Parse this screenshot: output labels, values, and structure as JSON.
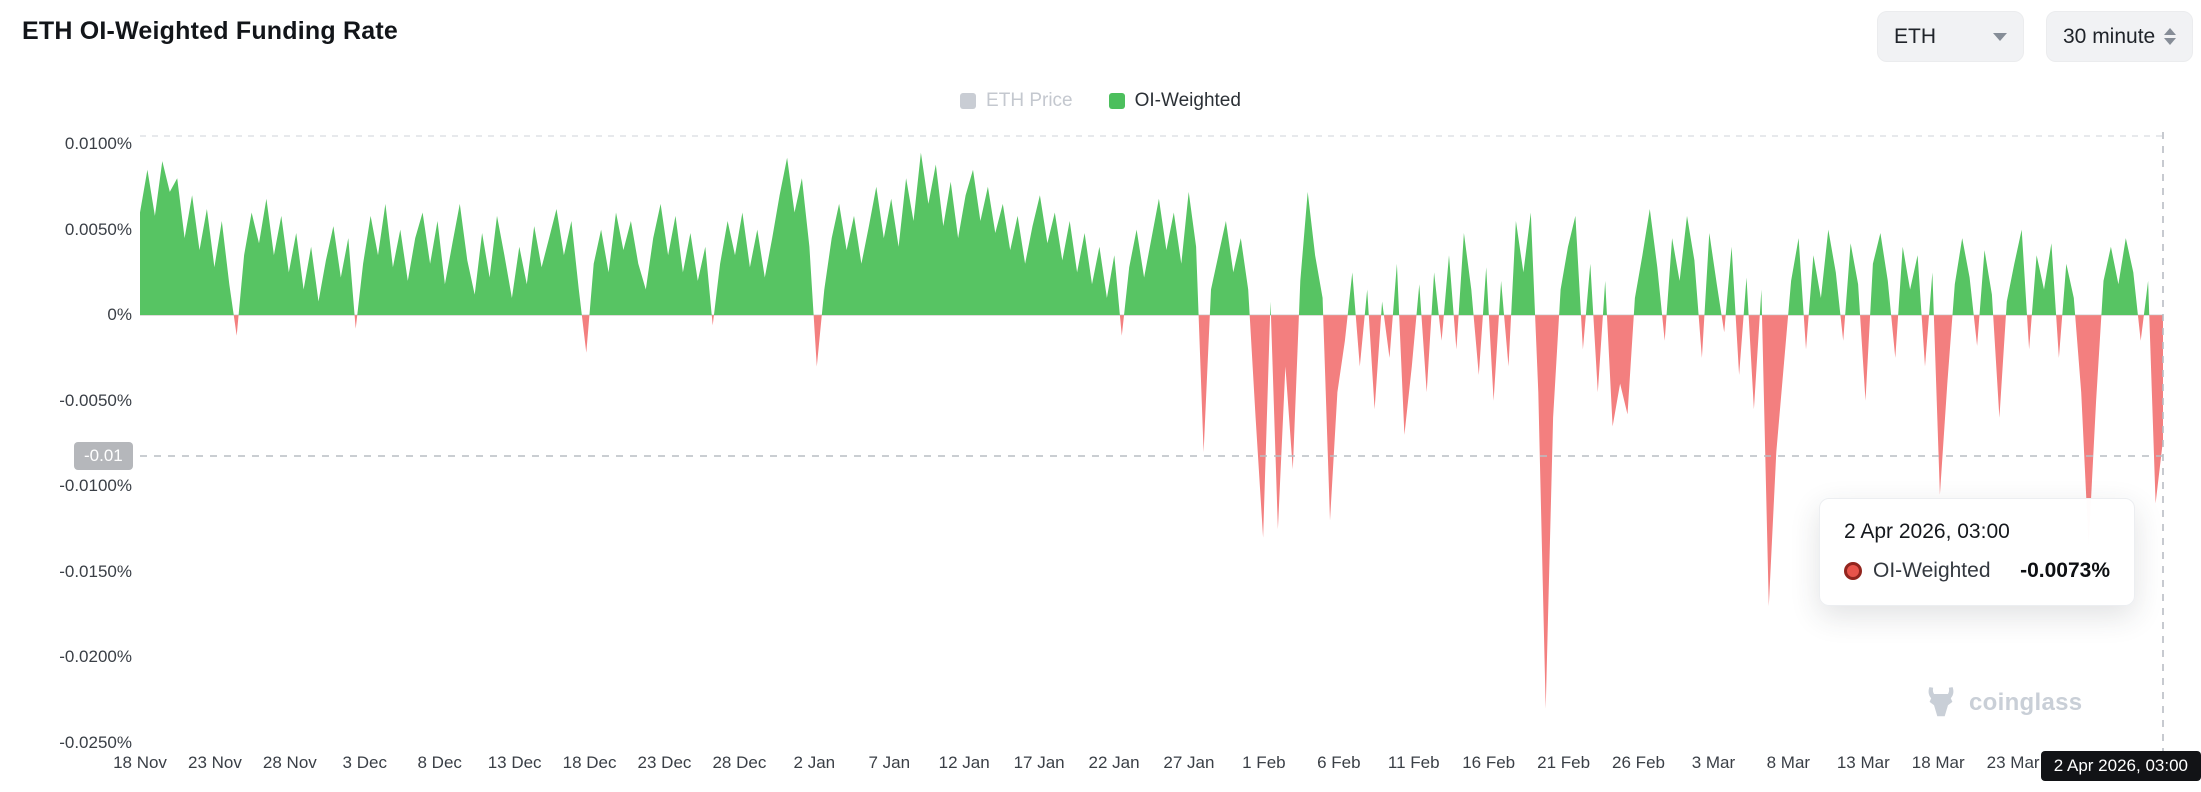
{
  "page": {
    "title": "ETH OI-Weighted Funding Rate"
  },
  "controls": {
    "symbol": {
      "value": "ETH"
    },
    "interval": {
      "value": "30 minute"
    }
  },
  "legend": {
    "items": [
      {
        "label": "ETH Price",
        "color": "#c9cdd4",
        "text_color": "#c4c8cf",
        "active": false
      },
      {
        "label": "OI-Weighted",
        "color": "#4cbf5d",
        "text_color": "#2b3036",
        "active": true
      }
    ]
  },
  "chart_data": {
    "type": "area",
    "title": "ETH OI-Weighted Funding Rate",
    "unit": "%",
    "grid": "off",
    "legend_position": "top-center",
    "y_axis": {
      "max": 0.01,
      "min": -0.025,
      "tick_labels": [
        "0.0100%",
        "0.0050%",
        "0%",
        "-0.0050%",
        "-0.0100%",
        "-0.0150%",
        "-0.0200%",
        "-0.0250%"
      ]
    },
    "x_axis": {
      "tick_labels": [
        "18 Nov",
        "23 Nov",
        "28 Nov",
        "3 Dec",
        "8 Dec",
        "13 Dec",
        "18 Dec",
        "23 Dec",
        "28 Dec",
        "2 Jan",
        "7 Jan",
        "12 Jan",
        "17 Jan",
        "22 Jan",
        "27 Jan",
        "1 Feb",
        "6 Feb",
        "11 Feb",
        "16 Feb",
        "21 Feb",
        "26 Feb",
        "3 Mar",
        "8 Mar",
        "13 Mar",
        "18 Mar",
        "23 Mar"
      ],
      "tick_interval_days": 5,
      "total_days": 135,
      "end_datetime": "2 Apr 2026, 03:00"
    },
    "hidden_series": [
      "ETH Price"
    ],
    "series": [
      {
        "name": "OI-Weighted",
        "positive_color": "#57c463",
        "negative_color": "#f37f7f",
        "last_value_pct": -0.0073,
        "values": [
          0.006,
          0.0085,
          0.0058,
          0.009,
          0.0072,
          0.008,
          0.0045,
          0.007,
          0.0038,
          0.0062,
          0.0028,
          0.0055,
          0.0018,
          -0.0012,
          0.0035,
          0.006,
          0.0042,
          0.0068,
          0.0035,
          0.0058,
          0.0025,
          0.0048,
          0.0015,
          0.004,
          0.0008,
          0.0032,
          0.0052,
          0.0022,
          0.0045,
          -0.0008,
          0.003,
          0.0058,
          0.0035,
          0.0065,
          0.0028,
          0.005,
          0.002,
          0.0045,
          0.006,
          0.003,
          0.0055,
          0.0018,
          0.0042,
          0.0065,
          0.0032,
          0.0012,
          0.0048,
          0.0022,
          0.0058,
          0.0035,
          0.001,
          0.004,
          0.0018,
          0.0052,
          0.0028,
          0.0045,
          0.0062,
          0.0035,
          0.0055,
          0.0015,
          -0.0022,
          0.003,
          0.005,
          0.0025,
          0.006,
          0.0038,
          0.0055,
          0.003,
          0.0015,
          0.0045,
          0.0065,
          0.0035,
          0.0058,
          0.0025,
          0.0048,
          0.002,
          0.004,
          -0.0006,
          0.003,
          0.0055,
          0.0035,
          0.006,
          0.0028,
          0.005,
          0.0022,
          0.0045,
          0.007,
          0.0092,
          0.006,
          0.008,
          0.004,
          -0.003,
          0.0015,
          0.0045,
          0.0065,
          0.0038,
          0.0058,
          0.003,
          0.0052,
          0.0075,
          0.0045,
          0.0068,
          0.004,
          0.008,
          0.0055,
          0.0095,
          0.0065,
          0.0088,
          0.0052,
          0.0078,
          0.0045,
          0.007,
          0.0085,
          0.0055,
          0.0075,
          0.0048,
          0.0065,
          0.0038,
          0.0058,
          0.003,
          0.0052,
          0.007,
          0.0042,
          0.006,
          0.0032,
          0.0055,
          0.0025,
          0.0048,
          0.0018,
          0.004,
          0.001,
          0.0035,
          -0.0012,
          0.0028,
          0.005,
          0.0022,
          0.0045,
          0.0068,
          0.0038,
          0.006,
          0.003,
          0.0072,
          0.004,
          -0.008,
          0.0015,
          0.0035,
          0.0055,
          0.0025,
          0.0045,
          0.0015,
          -0.006,
          -0.013,
          0.0008,
          -0.0125,
          -0.003,
          -0.009,
          0.002,
          0.0072,
          0.0035,
          0.001,
          -0.012,
          -0.0045,
          -0.0015,
          0.0025,
          -0.003,
          0.0015,
          -0.0055,
          0.0008,
          -0.0025,
          0.003,
          -0.007,
          -0.003,
          0.0018,
          -0.0045,
          0.0025,
          -0.0015,
          0.0035,
          -0.002,
          0.0048,
          0.0015,
          -0.0035,
          0.0028,
          -0.005,
          0.002,
          -0.003,
          0.0055,
          0.0025,
          0.006,
          -0.0045,
          -0.023,
          -0.006,
          0.0015,
          0.004,
          0.0058,
          -0.002,
          0.003,
          -0.0045,
          0.002,
          -0.0065,
          -0.004,
          -0.0058,
          0.001,
          0.0035,
          0.0062,
          0.0028,
          -0.0015,
          0.0045,
          0.002,
          0.0058,
          0.0032,
          -0.0025,
          0.0048,
          0.0018,
          -0.001,
          0.004,
          -0.0035,
          0.0022,
          -0.0055,
          0.0015,
          -0.017,
          -0.008,
          -0.003,
          0.002,
          0.0045,
          -0.002,
          0.0035,
          0.001,
          0.005,
          0.0025,
          -0.0015,
          0.0042,
          0.0018,
          -0.005,
          0.003,
          0.0048,
          0.002,
          -0.0025,
          0.004,
          0.0015,
          0.0035,
          -0.003,
          0.0025,
          -0.0105,
          -0.004,
          0.0018,
          0.0045,
          0.0022,
          -0.0018,
          0.0038,
          0.0012,
          -0.006,
          0.0008,
          0.003,
          0.005,
          -0.002,
          0.0035,
          0.0015,
          0.0042,
          -0.0025,
          0.003,
          0.001,
          -0.0045,
          -0.0135,
          -0.005,
          0.002,
          0.004,
          0.0018,
          0.0045,
          0.0025,
          -0.0015,
          0.002,
          -0.011,
          -0.0073
        ]
      }
    ]
  },
  "crosshair": {
    "y_axis_label": "-0.01",
    "x_axis_label": "2 Apr 2026, 03:00"
  },
  "tooltip": {
    "title": "2 Apr 2026, 03:00",
    "series_name": "OI-Weighted",
    "value": "-0.0073%",
    "marker_fill": "#e8544b",
    "marker_border": "#92251e"
  },
  "watermark": {
    "text": "coinglass"
  }
}
